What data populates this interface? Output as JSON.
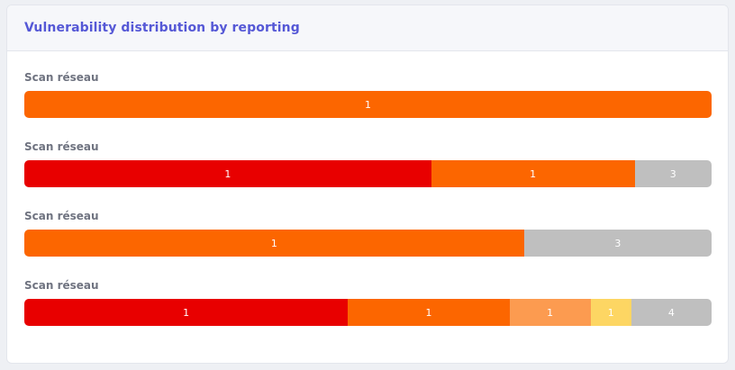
{
  "card": {
    "title": "Vulnerability distribution by reporting"
  },
  "colors": {
    "critical": "#e80000",
    "high": "#fc6600",
    "medium": "#fc9b50",
    "low": "#fdd663",
    "info": "#bfbfbf"
  },
  "rows": [
    {
      "label": "Scan réseau",
      "segments": [
        {
          "severity": "high",
          "value": "1",
          "fraction": 1.0
        }
      ]
    },
    {
      "label": "Scan réseau",
      "segments": [
        {
          "severity": "critical",
          "value": "1",
          "fraction": 0.592
        },
        {
          "severity": "high",
          "value": "1",
          "fraction": 0.296
        },
        {
          "severity": "info",
          "value": "3",
          "fraction": 0.112
        }
      ]
    },
    {
      "label": "Scan réseau",
      "segments": [
        {
          "severity": "high",
          "value": "1",
          "fraction": 0.727
        },
        {
          "severity": "info",
          "value": "3",
          "fraction": 0.273
        }
      ]
    },
    {
      "label": "Scan réseau",
      "segments": [
        {
          "severity": "critical",
          "value": "1",
          "fraction": 0.471
        },
        {
          "severity": "high",
          "value": "1",
          "fraction": 0.235
        },
        {
          "severity": "medium",
          "value": "1",
          "fraction": 0.118
        },
        {
          "severity": "low",
          "value": "1",
          "fraction": 0.059
        },
        {
          "severity": "info",
          "value": "4",
          "fraction": 0.117
        }
      ]
    }
  ]
}
